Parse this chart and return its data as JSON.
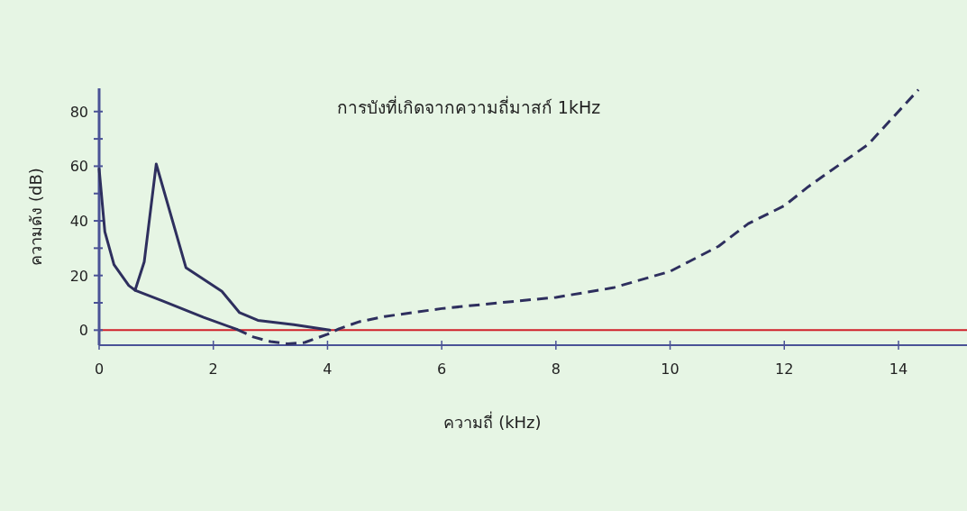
{
  "chart_data": {
    "type": "line",
    "title": "การบังที่เกิดจากความถี่มาสก์ 1kHz",
    "xlabel": "ความถี่ (kHz)",
    "ylabel": "ความดัง (dB)",
    "xlim": [
      0,
      15.2
    ],
    "ylim": [
      -5.5,
      88.5
    ],
    "xticks": [
      0,
      2,
      4,
      6,
      8,
      10,
      12,
      14
    ],
    "yticks": [
      0,
      {
        "value": 10,
        "label": null
      },
      20,
      {
        "value": 30,
        "label": null
      },
      40,
      {
        "value": 50,
        "label": null
      },
      60,
      {
        "value": 70,
        "label": null
      },
      80
    ],
    "series": [
      {
        "color": "#2e2f5e",
        "line_style": "solid",
        "x": [
          0,
          0.1,
          0.26,
          0.52,
          0.63,
          1.1,
          1.83,
          2.41
        ],
        "values": [
          59,
          36,
          24,
          16.3,
          14.6,
          10.8,
          4.7,
          0.3
        ]
      },
      {
        "color": "#2e2f5e",
        "line_style": "dashed",
        "x": [
          2.41,
          2.7,
          3.0,
          3.3,
          3.6,
          4.0,
          4.2,
          4.56,
          5,
          6,
          7,
          8,
          9,
          10,
          10.85,
          11.37,
          12,
          12.42,
          13.47,
          14.35
        ],
        "values": [
          0.3,
          -2.5,
          -4.2,
          -5,
          -4.5,
          -1.5,
          0.5,
          3.1,
          5,
          7.9,
          10,
          12,
          15.5,
          21.5,
          30.7,
          39,
          45.5,
          52.5,
          68,
          88
        ]
      },
      {
        "color": "#2e2f5e",
        "line_style": "solid",
        "x": [
          0.63,
          0.79,
          1.0,
          1.52,
          2.15,
          2.46,
          2.78,
          3.41,
          4.04
        ],
        "values": [
          14.6,
          25,
          60.8,
          22.9,
          14.2,
          6.4,
          3.6,
          2,
          0
        ]
      }
    ],
    "ref_lines": [
      {
        "axis": "y",
        "value": 0,
        "color": "#d0202a"
      }
    ]
  }
}
